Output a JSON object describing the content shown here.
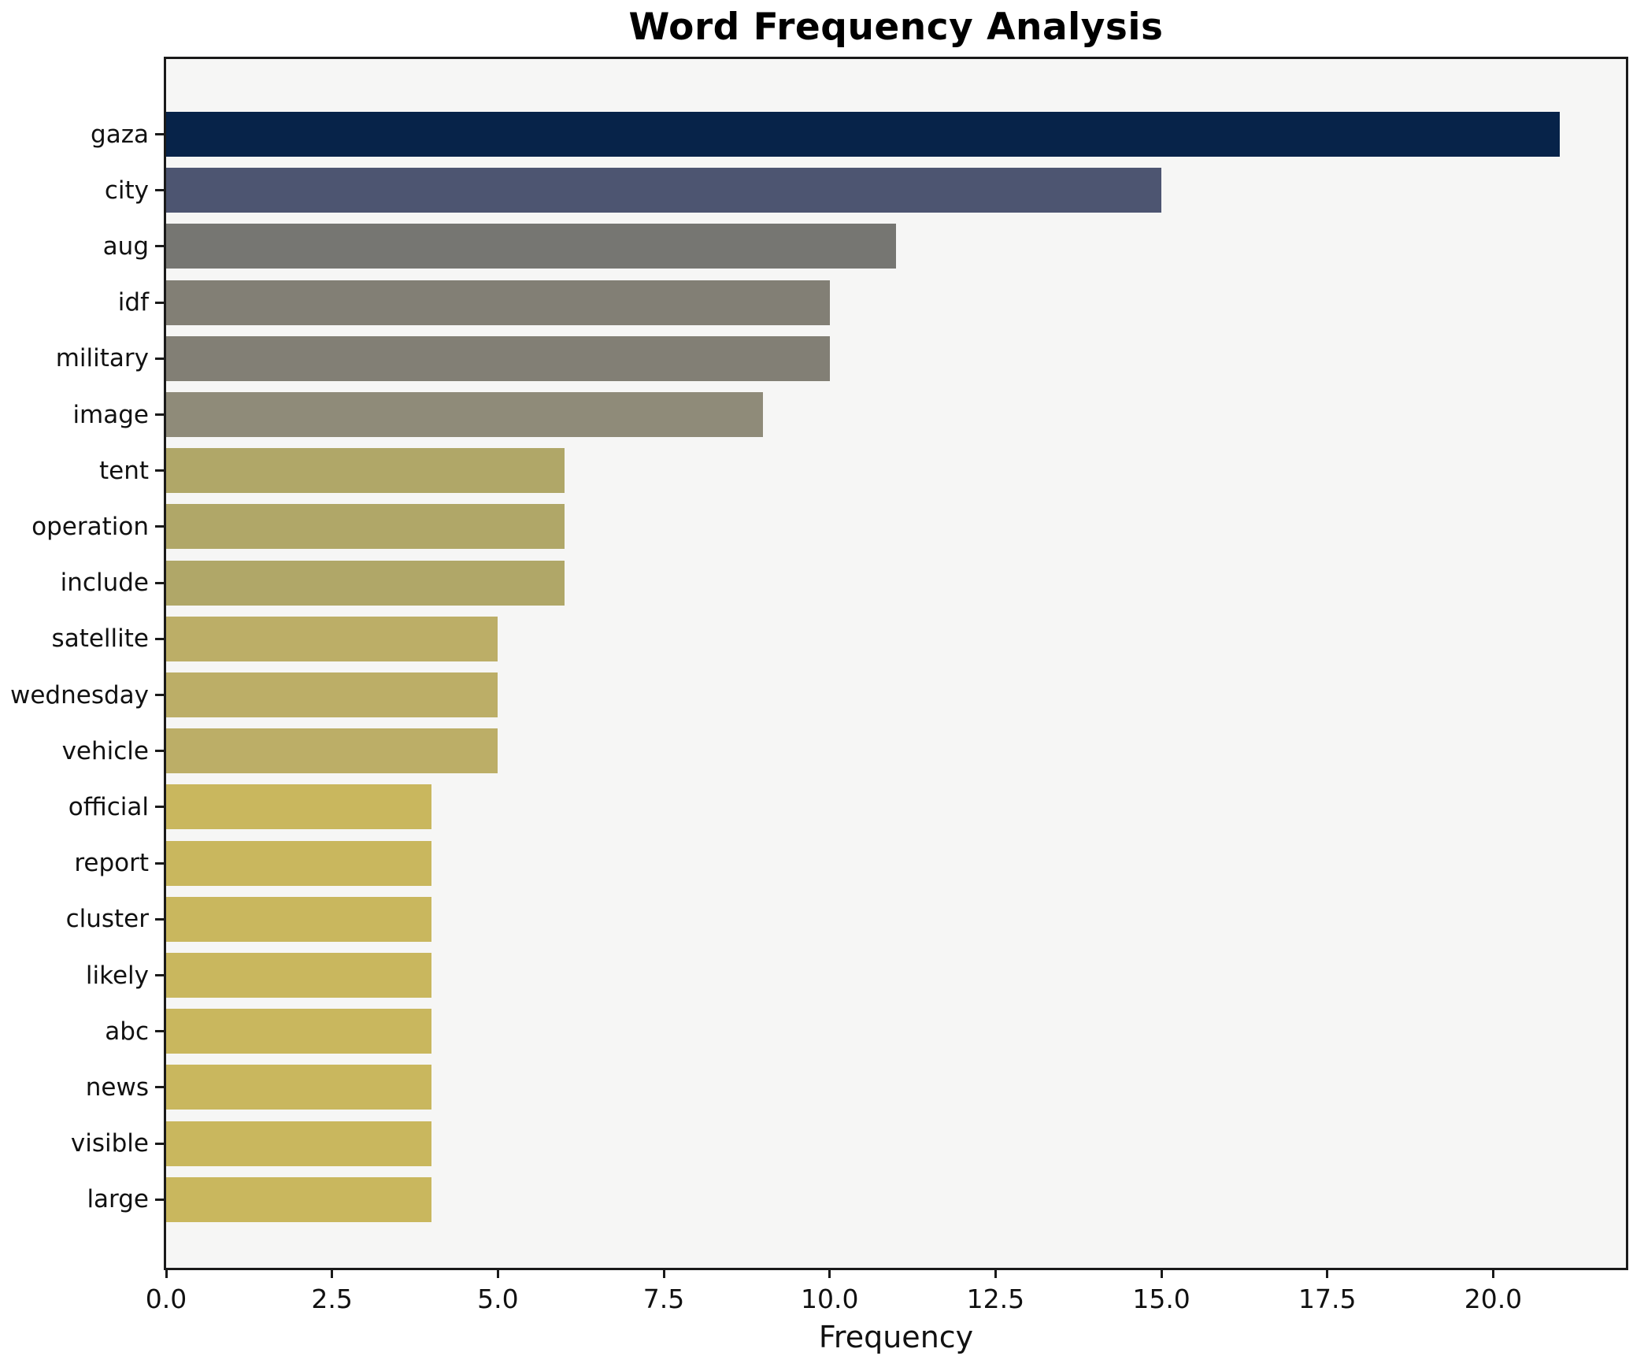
{
  "chart_data": {
    "type": "bar",
    "orientation": "horizontal",
    "title": "Word Frequency Analysis",
    "xlabel": "Frequency",
    "ylabel": "",
    "categories": [
      "gaza",
      "city",
      "aug",
      "idf",
      "military",
      "image",
      "tent",
      "operation",
      "include",
      "satellite",
      "wednesday",
      "vehicle",
      "official",
      "report",
      "cluster",
      "likely",
      "abc",
      "news",
      "visible",
      "large"
    ],
    "values": [
      21,
      15,
      11,
      10,
      10,
      9,
      6,
      6,
      6,
      5,
      5,
      5,
      4,
      4,
      4,
      4,
      4,
      4,
      4,
      4
    ],
    "bar_colors": [
      "#072349",
      "#4d5571",
      "#767672",
      "#827f75",
      "#827f75",
      "#8f8b79",
      "#b0a768",
      "#b0a768",
      "#b0a768",
      "#bcae67",
      "#bcae67",
      "#bcae67",
      "#c9b75e",
      "#c9b75e",
      "#c9b75e",
      "#c9b75e",
      "#c9b75e",
      "#c9b75e",
      "#c9b75e",
      "#c9b75e"
    ],
    "xlim": [
      0,
      22
    ],
    "x_ticks": [
      0,
      2.5,
      5,
      7.5,
      10,
      12.5,
      15,
      17.5,
      20
    ],
    "x_tick_labels": [
      "0.0",
      "2.5",
      "5.0",
      "7.5",
      "10.0",
      "12.5",
      "15.0",
      "17.5",
      "20.0"
    ],
    "grid": false,
    "legend_position": "none",
    "plot_bg": "#f6f6f5",
    "fig_bg": "#ffffff",
    "spine_color": "#1a1a1a"
  }
}
